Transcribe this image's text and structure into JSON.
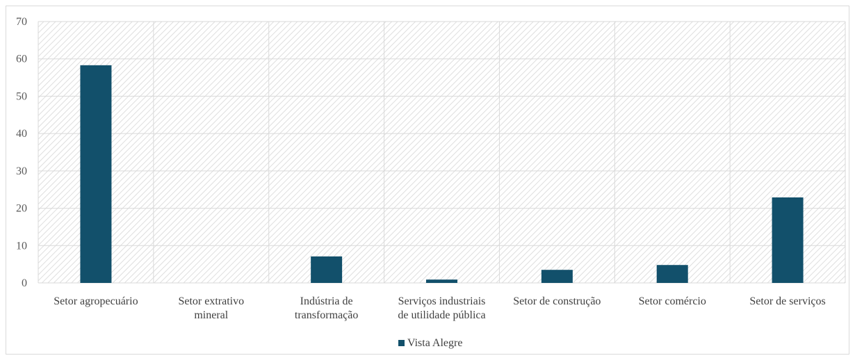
{
  "chart_data": {
    "type": "bar",
    "categories": [
      [
        "Setor agropecuário"
      ],
      [
        "Setor extrativo",
        "mineral"
      ],
      [
        "Indústria de",
        "transformação"
      ],
      [
        "Serviços industriais",
        "de utilidade pública"
      ],
      [
        "Setor de construção"
      ],
      [
        "Setor comércio"
      ],
      [
        "Setor de serviços"
      ]
    ],
    "series": [
      {
        "name": "Vista Alegre",
        "values": [
          58.3,
          0,
          7.1,
          0.9,
          3.5,
          4.8,
          22.9
        ]
      }
    ],
    "ylim": [
      0,
      70
    ],
    "yticks": [
      0,
      10,
      20,
      30,
      40,
      50,
      60,
      70
    ],
    "grid": true,
    "legend_position": "bottom",
    "colors": {
      "bar": "#12506b",
      "grid": "#d9d9d9",
      "hatch": "#e4e4e4"
    }
  }
}
